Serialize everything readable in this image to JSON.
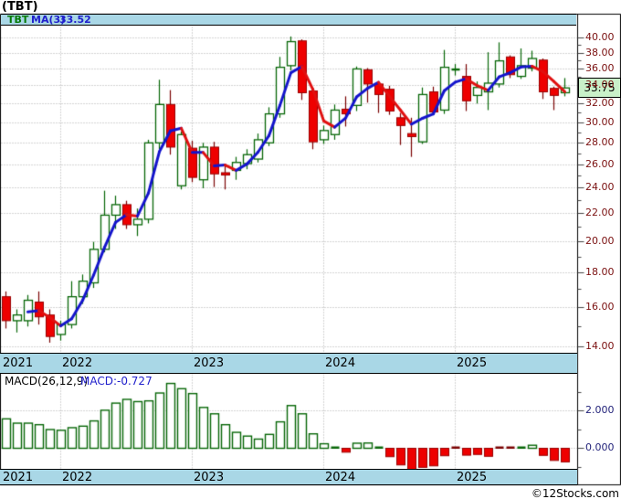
{
  "title": "(TBT)",
  "legend": {
    "symbol": "TBT",
    "ma_label": "MA(3)",
    "ma_value": "33.52"
  },
  "price_label": "33.75",
  "macd_header": {
    "label": "MACD(26,12,9)",
    "value_label": "MACD:-0.727"
  },
  "copyright": "©12Stocks.com",
  "colors": {
    "strip_bg": "#a9d7e6",
    "up": "#066606",
    "down_fill": "#ee0000",
    "down_border": "#990000",
    "down_dark": "#7a0000",
    "ma_up": "#1414cc",
    "ma_down": "#e01010",
    "grid": "#ababab",
    "frame": "#000000",
    "tick": "#444444",
    "price_axis_text": "#7a1010",
    "macd_axis_text": "#23237a",
    "price_label_bg": "#c9f0c9"
  },
  "chart_data": {
    "type": "candlestick",
    "title": "(TBT)",
    "interval": "monthly",
    "start_month": "2021-08",
    "end_month": "2025-11",
    "scale": "log",
    "price_axis": {
      "min": 14,
      "max": 40,
      "tick_step": 2,
      "minor_step": 1,
      "label_format": "2dp"
    },
    "x_axis": {
      "years": [
        "2021",
        "2022",
        "2023",
        "2024",
        "2025"
      ],
      "year_start_candle_indices": [
        null,
        5,
        17,
        29,
        41
      ]
    },
    "ma": {
      "period": 3,
      "last_value": 33.52
    },
    "last_close": 33.75,
    "candles_ohlc": [
      [
        16.6,
        16.9,
        14.9,
        15.3
      ],
      [
        15.3,
        15.9,
        14.7,
        15.6
      ],
      [
        15.3,
        16.7,
        15.0,
        16.4
      ],
      [
        16.3,
        16.9,
        15.1,
        15.5
      ],
      [
        15.6,
        15.9,
        14.2,
        14.5
      ],
      [
        14.6,
        15.3,
        14.3,
        15.1
      ],
      [
        15.1,
        17.5,
        14.9,
        16.6
      ],
      [
        16.6,
        17.9,
        16.2,
        17.5
      ],
      [
        17.4,
        20.0,
        17.1,
        19.5
      ],
      [
        19.5,
        23.8,
        19.3,
        21.9
      ],
      [
        21.9,
        23.4,
        20.9,
        22.7
      ],
      [
        22.7,
        23.0,
        20.9,
        21.2
      ],
      [
        21.2,
        22.4,
        20.4,
        21.6
      ],
      [
        21.6,
        28.3,
        21.3,
        28.0
      ],
      [
        28.0,
        34.7,
        27.4,
        31.9
      ],
      [
        31.9,
        33.5,
        26.9,
        27.6
      ],
      [
        24.2,
        29.1,
        23.9,
        28.8
      ],
      [
        27.5,
        28.2,
        24.5,
        24.9
      ],
      [
        24.7,
        28.0,
        24.0,
        27.6
      ],
      [
        27.6,
        28.1,
        24.1,
        25.2
      ],
      [
        25.3,
        26.0,
        23.9,
        25.1
      ],
      [
        25.5,
        26.7,
        24.7,
        26.2
      ],
      [
        26.1,
        27.4,
        25.6,
        26.9
      ],
      [
        26.5,
        28.9,
        26.2,
        28.3
      ],
      [
        28.0,
        31.6,
        27.7,
        30.9
      ],
      [
        30.9,
        37.5,
        30.5,
        36.2
      ],
      [
        36.4,
        40.2,
        35.8,
        39.5
      ],
      [
        39.6,
        39.8,
        32.4,
        33.2
      ],
      [
        33.4,
        33.8,
        27.4,
        28.1
      ],
      [
        28.3,
        29.7,
        27.9,
        29.2
      ],
      [
        28.8,
        31.9,
        28.3,
        31.3
      ],
      [
        31.4,
        32.8,
        29.6,
        30.9
      ],
      [
        31.8,
        36.3,
        31.2,
        36.0
      ],
      [
        35.9,
        36.1,
        32.1,
        34.2
      ],
      [
        34.2,
        34.4,
        31.0,
        33.0
      ],
      [
        33.6,
        34.0,
        30.8,
        31.2
      ],
      [
        30.5,
        31.0,
        27.8,
        29.7
      ],
      [
        28.9,
        30.5,
        26.7,
        28.6
      ],
      [
        28.1,
        33.8,
        27.9,
        33.0
      ],
      [
        33.3,
        33.9,
        30.8,
        31.1
      ],
      [
        31.3,
        38.4,
        30.9,
        36.2
      ],
      [
        35.85,
        36.6,
        35.2,
        35.95
      ],
      [
        35.1,
        36.6,
        31.2,
        32.3
      ],
      [
        32.9,
        34.5,
        32.0,
        33.8
      ],
      [
        33.3,
        38.1,
        31.3,
        34.3
      ],
      [
        34.2,
        39.4,
        33.8,
        37.0
      ],
      [
        37.5,
        37.7,
        34.9,
        35.3
      ],
      [
        35.1,
        38.6,
        34.8,
        36.4
      ],
      [
        36.1,
        38.3,
        35.7,
        37.3
      ],
      [
        37.1,
        37.3,
        32.5,
        33.3
      ],
      [
        33.7,
        33.9,
        31.3,
        32.9
      ],
      [
        33.2,
        34.9,
        32.8,
        33.75
      ]
    ],
    "macd": {
      "params": "26,12,9",
      "last_value": -0.727,
      "axis": {
        "labels": [
          "2.000",
          "0.000"
        ],
        "values": [
          2,
          0
        ],
        "tick_step": 1
      },
      "values": [
        1.57,
        1.34,
        1.34,
        1.26,
        1.0,
        0.96,
        1.1,
        1.18,
        1.46,
        2.03,
        2.41,
        2.61,
        2.49,
        2.53,
        2.95,
        3.46,
        3.18,
        2.92,
        2.18,
        1.84,
        1.26,
        0.85,
        0.65,
        0.49,
        0.74,
        1.41,
        2.28,
        1.84,
        0.77,
        0.24,
        0.05,
        -0.21,
        0.27,
        0.28,
        0.08,
        -0.45,
        -0.89,
        -1.19,
        -1.02,
        -0.94,
        -0.4,
        -0.05,
        -0.37,
        -0.33,
        -0.43,
        -0.05,
        -0.06,
        0.05,
        0.16,
        -0.38,
        -0.65,
        -0.727
      ]
    }
  }
}
